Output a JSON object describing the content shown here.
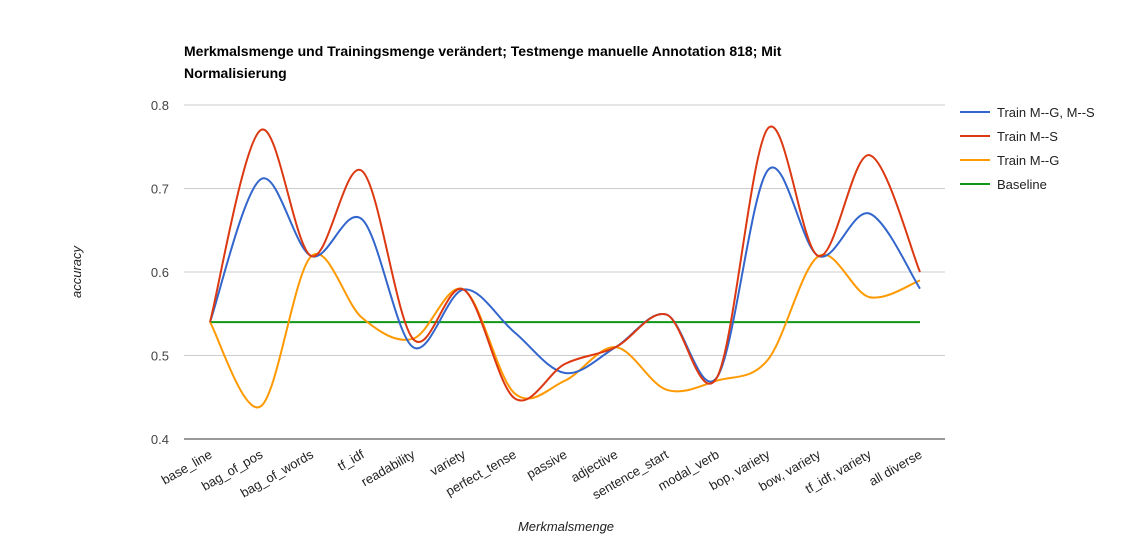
{
  "chart_data": {
    "type": "line",
    "title": [
      "Merkmalsmenge und Trainingsmenge verändert; Testmenge manuelle Annotation 818; Mit",
      "Normalisierung"
    ],
    "xlabel": "Merkmalsmenge",
    "ylabel": "accuracy",
    "ylim": [
      0.4,
      0.8
    ],
    "yticks": [
      "0.4",
      "0.5",
      "0.6",
      "0.7",
      "0.8"
    ],
    "grid": true,
    "legend_position": "right",
    "categories": [
      "base_line",
      "bag_of_pos",
      "bag_of_words",
      "tf_idf",
      "readability",
      "variety",
      "perfect_tense",
      "passive",
      "adjective",
      "sentence_start",
      "modal_verb",
      "bop, variety",
      "bow, variety",
      "tf_idf, variety",
      "all diverse"
    ],
    "series": [
      {
        "name": "Train M--G, M--S",
        "color": "#3366cc",
        "values": [
          0.54,
          0.711,
          0.619,
          0.663,
          0.51,
          0.579,
          0.528,
          0.479,
          0.51,
          0.549,
          0.474,
          0.722,
          0.619,
          0.67,
          0.58
        ]
      },
      {
        "name": "Train M--S",
        "color": "#dc3912",
        "values": [
          0.54,
          0.77,
          0.619,
          0.721,
          0.52,
          0.579,
          0.449,
          0.49,
          0.51,
          0.549,
          0.474,
          0.772,
          0.619,
          0.74,
          0.6
        ]
      },
      {
        "name": "Train M--G",
        "color": "#ff9900",
        "values": [
          0.54,
          0.439,
          0.619,
          0.545,
          0.52,
          0.579,
          0.455,
          0.47,
          0.51,
          0.459,
          0.47,
          0.495,
          0.619,
          0.57,
          0.59
        ]
      },
      {
        "name": "Baseline",
        "color": "#109618",
        "values": [
          0.54,
          0.54,
          0.54,
          0.54,
          0.54,
          0.54,
          0.54,
          0.54,
          0.54,
          0.54,
          0.54,
          0.54,
          0.54,
          0.54,
          0.54
        ]
      }
    ]
  }
}
